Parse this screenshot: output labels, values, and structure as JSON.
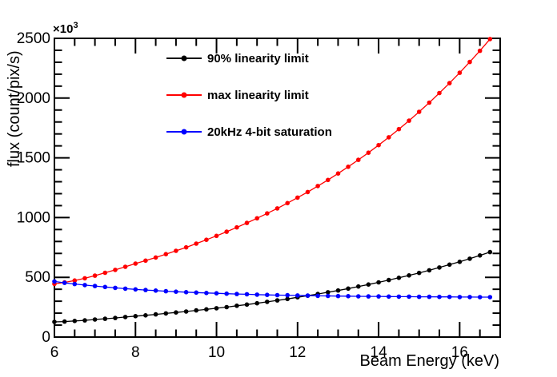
{
  "chart_data": {
    "type": "line",
    "title": "",
    "xlabel": "Beam Energy (keV)",
    "ylabel": "flux (count/pix/s)",
    "y_multiplier": {
      "mantissa": "×10",
      "exponent": "3"
    },
    "xlim": [
      6,
      17
    ],
    "ylim": [
      0,
      2500
    ],
    "x_ticks": [
      6,
      8,
      10,
      12,
      14,
      16
    ],
    "x_minor_step": 0.5,
    "y_ticks": [
      0,
      500,
      1000,
      1500,
      2000,
      2500
    ],
    "y_minor_step": 100,
    "grid": false,
    "legend_position": "top-left-inside",
    "units_note": "y values are in units of 10^3 count/pix/s (axis multiplier ×10^3)",
    "x": [
      6,
      6.25,
      6.5,
      6.75,
      7,
      7.25,
      7.5,
      7.75,
      8,
      8.25,
      8.5,
      8.75,
      9,
      9.25,
      9.5,
      9.75,
      10,
      10.25,
      10.5,
      10.75,
      11,
      11.25,
      11.5,
      11.75,
      12,
      12.25,
      12.5,
      12.75,
      13,
      13.25,
      13.5,
      13.75,
      14,
      14.25,
      14.5,
      14.75,
      15,
      15.25,
      15.5,
      15.75,
      16,
      16.25,
      16.5,
      16.75
    ],
    "series": [
      {
        "name": "90% linearity limit",
        "color": "#000000",
        "marker": "circle",
        "values": [
          127,
          130,
          135,
          140,
          147,
          153,
          160,
          168,
          175,
          182,
          190,
          198,
          206,
          214,
          223,
          232,
          241,
          251,
          262,
          272,
          283,
          295,
          307,
          319,
          333,
          346,
          360,
          375,
          390,
          406,
          423,
          440,
          458,
          477,
          496,
          516,
          537,
          559,
          582,
          606,
          630,
          656,
          683,
          711
        ]
      },
      {
        "name": "max linearity limit",
        "color": "#ff0000",
        "marker": "circle",
        "values": [
          445,
          457,
          473,
          492,
          514,
          538,
          562,
          588,
          615,
          640,
          666,
          694,
          722,
          751,
          782,
          814,
          847,
          882,
          918,
          955,
          994,
          1035,
          1077,
          1121,
          1167,
          1214,
          1264,
          1315,
          1369,
          1425,
          1483,
          1543,
          1606,
          1672,
          1740,
          1811,
          1885,
          1962,
          2042,
          2125,
          2212,
          2302,
          2396,
          2494
        ]
      },
      {
        "name": "20kHz 4-bit saturation",
        "color": "#0000ff",
        "marker": "circle",
        "values": [
          465,
          454,
          444,
          435,
          427,
          419,
          412,
          405,
          399,
          394,
          389,
          384,
          380,
          376,
          372,
          369,
          366,
          363,
          360,
          358,
          355,
          353,
          351,
          350,
          348,
          347,
          345,
          344,
          343,
          342,
          341,
          340,
          340,
          339,
          338,
          338,
          337,
          337,
          336,
          336,
          335,
          335,
          334,
          334
        ]
      }
    ]
  }
}
